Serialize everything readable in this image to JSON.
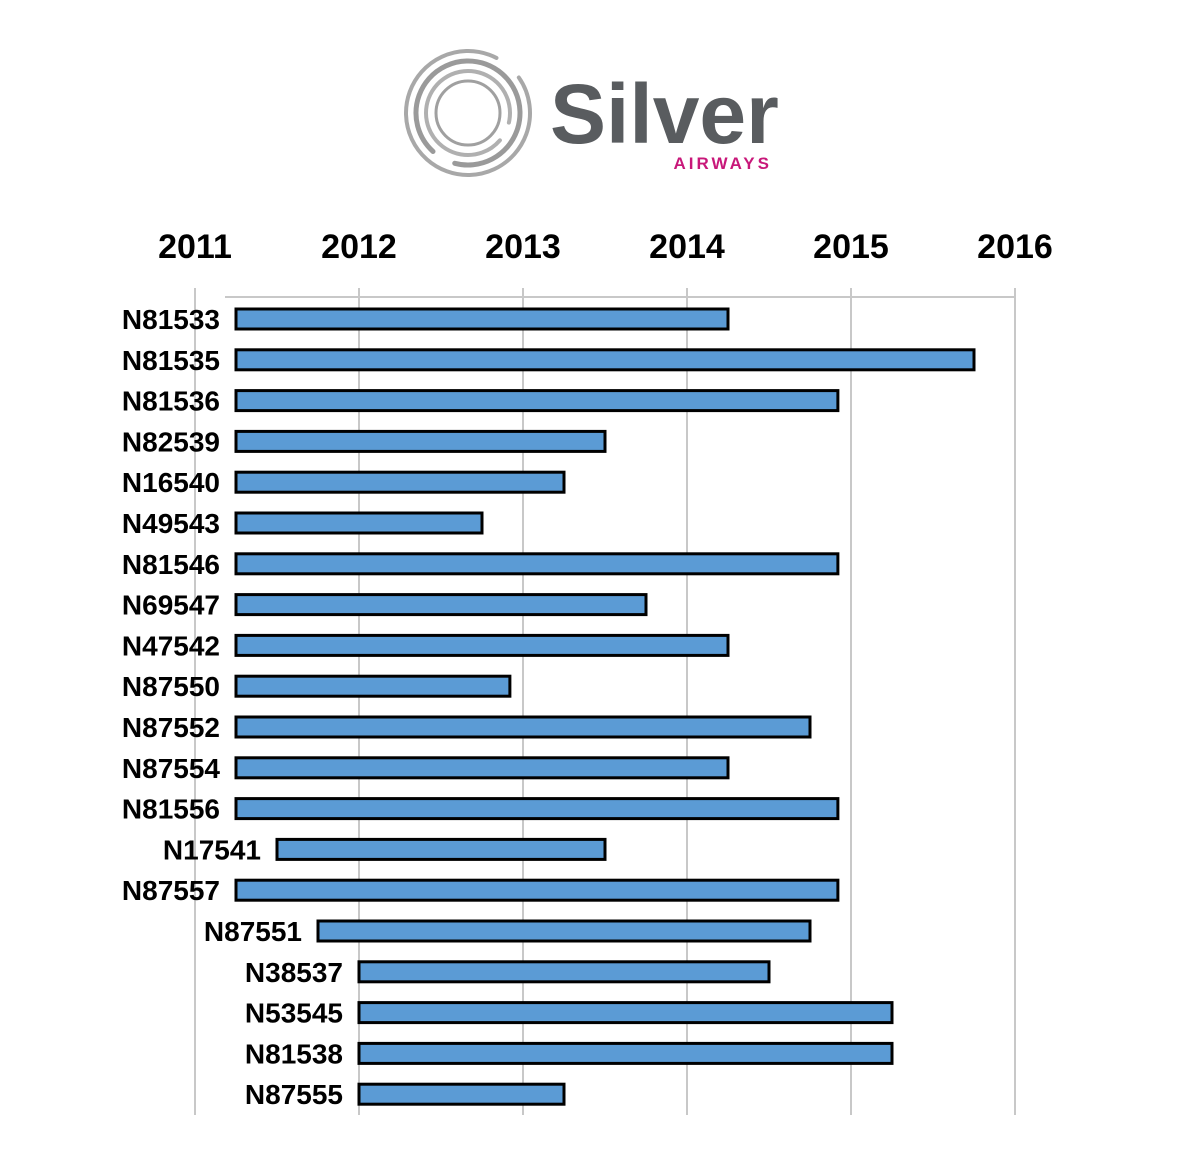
{
  "logo": {
    "name": "Silver",
    "tagline": "AIRWAYS",
    "name_color": "#595c5f",
    "tagline_color": "#c8187a",
    "ring_color": "#9a9a9a"
  },
  "chart_data": {
    "type": "bar",
    "orientation": "horizontal",
    "title": "",
    "xlabel": "",
    "ylabel": "",
    "x_axis_position": "top",
    "grid": true,
    "xlim": [
      2011,
      2016
    ],
    "x_ticks": [
      "2011",
      "2012",
      "2013",
      "2014",
      "2015",
      "2016"
    ],
    "bar_color": "#5b9bd5",
    "bar_edge_color": "#000000",
    "categories": [
      "N81533",
      "N81535",
      "N81536",
      "N82539",
      "N16540",
      "N49543",
      "N81546",
      "N69547",
      "N47542",
      "N87550",
      "N87552",
      "N87554",
      "N81556",
      "N17541",
      "N87557",
      "N87551",
      "N38537",
      "N53545",
      "N81538",
      "N87555"
    ],
    "start": [
      2011.25,
      2011.25,
      2011.25,
      2011.25,
      2011.25,
      2011.25,
      2011.25,
      2011.25,
      2011.25,
      2011.25,
      2011.25,
      2011.25,
      2011.25,
      2011.5,
      2011.25,
      2011.75,
      2012.0,
      2012.0,
      2012.0,
      2012.0
    ],
    "end": [
      2014.25,
      2015.75,
      2014.92,
      2013.5,
      2013.25,
      2012.75,
      2014.92,
      2013.75,
      2014.25,
      2012.92,
      2014.75,
      2014.25,
      2014.92,
      2013.5,
      2014.92,
      2014.75,
      2014.5,
      2015.25,
      2015.25,
      2013.25
    ]
  }
}
